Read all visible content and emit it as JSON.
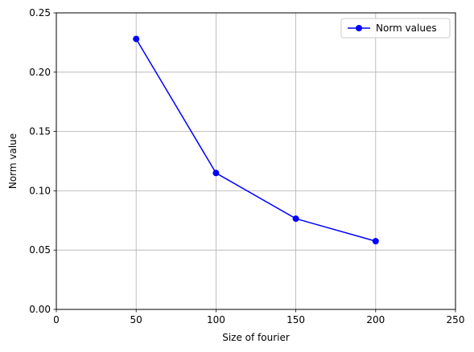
{
  "chart_data": {
    "type": "line",
    "title": "",
    "xlabel": "Size of fourier",
    "ylabel": "Norm value",
    "xlim": [
      0,
      250
    ],
    "ylim": [
      0,
      0.25
    ],
    "xticks": [
      0,
      50,
      100,
      150,
      200,
      250
    ],
    "xtick_labels": [
      "0",
      "50",
      "100",
      "150",
      "200",
      "250"
    ],
    "yticks": [
      0,
      0.05,
      0.1,
      0.15,
      0.2,
      0.25
    ],
    "ytick_labels": [
      "0.00",
      "0.05",
      "0.10",
      "0.15",
      "0.20",
      "0.25"
    ],
    "grid": true,
    "legend_position": "top-right",
    "series": [
      {
        "name": "Norm values",
        "color": "#0000ff",
        "marker": "circle",
        "x": [
          50,
          100,
          150,
          200
        ],
        "y": [
          0.228,
          0.115,
          0.0765,
          0.0575
        ]
      }
    ]
  }
}
